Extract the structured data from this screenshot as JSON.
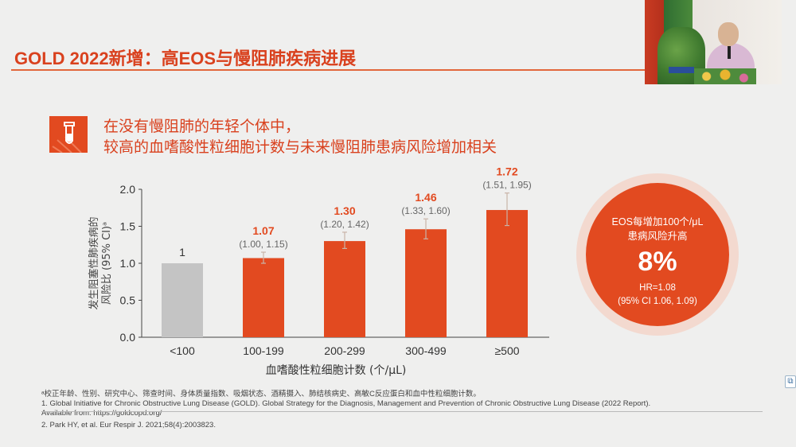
{
  "slide": {
    "title": "GOLD 2022新增：高EOS与慢阻肺疾病进展",
    "subtitle_line1": "在没有慢阻肺的年轻个体中，",
    "subtitle_line2": "较高的血嗜酸性粒细胞计数与未来慢阻肺患病风险增加相关"
  },
  "colors": {
    "accent": "#e24a20",
    "reference_bar": "#c4c4c4",
    "title": "#d9411e"
  },
  "icons": {
    "header_icon": "test-tube-icon",
    "side_icon": "screen-share-icon"
  },
  "chart_data": {
    "type": "bar",
    "categories": [
      "<100",
      "100-199",
      "200-299",
      "300-499",
      "≥500"
    ],
    "values": [
      1,
      1.07,
      1.3,
      1.46,
      1.72
    ],
    "value_labels": [
      "1",
      "1.07",
      "1.30",
      "1.46",
      "1.72"
    ],
    "ci_labels": [
      "",
      "(1.00, 1.15)",
      "(1.20, 1.42)",
      "(1.33, 1.60)",
      "(1.51, 1.95)"
    ],
    "ci_low": [
      null,
      1.0,
      1.2,
      1.33,
      1.51
    ],
    "ci_high": [
      null,
      1.15,
      1.42,
      1.6,
      1.95
    ],
    "ylim": [
      0,
      2.0
    ],
    "yticks": [
      "0.0",
      "0.5",
      "1.0",
      "1.5",
      "2.0"
    ],
    "ytick_values": [
      0,
      0.5,
      1.0,
      1.5,
      2.0
    ],
    "xlabel": "血嗜酸性粒细胞计数 (个/μL)",
    "ylabel_line1": "发生阻塞性肺疾病的",
    "ylabel_line2": "风险比 (95% CI)ᵃ",
    "grid": false
  },
  "badge": {
    "line1": "EOS每增加100个/μL",
    "line2": "患病风险升高",
    "percent": "8%",
    "hr": "HR=1.08",
    "ci": "(95% CI 1.06, 1.09)"
  },
  "footnotes": {
    "a": "ᵃ校正年龄、性别、研究中心、筛查时间、身体质量指数、吸烟状态、酒精摄入、肺结核病史、高敏C反应蛋白和血中性粒细胞计数。",
    "ref1": "1. Global Initiative for Chronic Obstructive Lung Disease (GOLD). Global Strategy for the Diagnosis, Management and Prevention of Chronic Obstructive Lung Disease (2022 Report).",
    "ref1b": "Available from: https://goldcopd.org/",
    "ref2": "2. Park HY, et al. Eur Respir J. 2021;58(4):2003823."
  }
}
